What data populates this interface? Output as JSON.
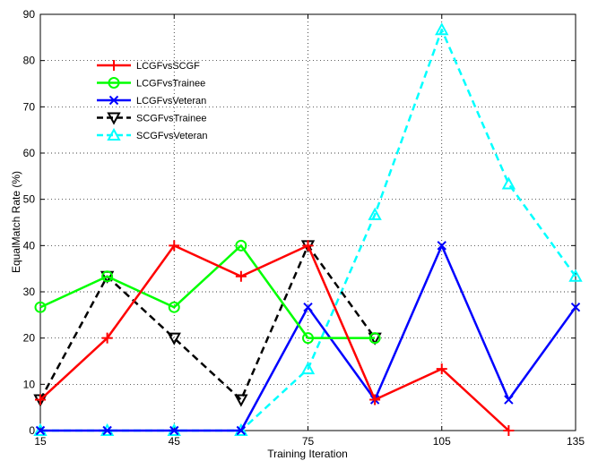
{
  "chart_data": {
    "type": "line",
    "title": "",
    "xlabel": "Training Iteration",
    "ylabel": "EqualMatch Rate (%)",
    "xlim": [
      15,
      135
    ],
    "ylim": [
      0,
      90
    ],
    "x_ticks": [
      15,
      45,
      75,
      105,
      135
    ],
    "y_ticks": [
      0,
      10,
      20,
      30,
      40,
      50,
      60,
      70,
      80,
      90
    ],
    "grid": true,
    "legend_position": "top-left",
    "x": [
      15,
      30,
      45,
      60,
      75,
      90,
      105,
      120,
      135
    ],
    "series": [
      {
        "name": "LCGFvsSCGF",
        "color": "#ff0000",
        "dash": "solid",
        "marker": "plus",
        "values": [
          6.67,
          20,
          40,
          33.33,
          40,
          6.67,
          13.33,
          0,
          null
        ]
      },
      {
        "name": "LCGFvsTrainee",
        "color": "#00ff00",
        "dash": "solid",
        "marker": "circle",
        "values": [
          26.67,
          33.33,
          26.67,
          40,
          20,
          20,
          null,
          null,
          null
        ]
      },
      {
        "name": "LCGFvsVeteran",
        "color": "#0000ff",
        "dash": "solid",
        "marker": "x",
        "values": [
          0,
          0,
          0,
          0,
          26.67,
          6.67,
          40,
          6.67,
          26.67
        ]
      },
      {
        "name": "SCGFvsTrainee",
        "color": "#000000",
        "dash": "dashed",
        "marker": "triangle-down",
        "values": [
          6.67,
          33.33,
          20,
          6.67,
          40,
          20,
          null,
          null,
          null
        ]
      },
      {
        "name": "SCGFvsVeteran",
        "color": "#00ffff",
        "dash": "dashed",
        "marker": "triangle-up",
        "values": [
          0,
          0,
          0,
          0,
          13.33,
          46.67,
          86.67,
          53.33,
          33.33
        ]
      }
    ]
  }
}
